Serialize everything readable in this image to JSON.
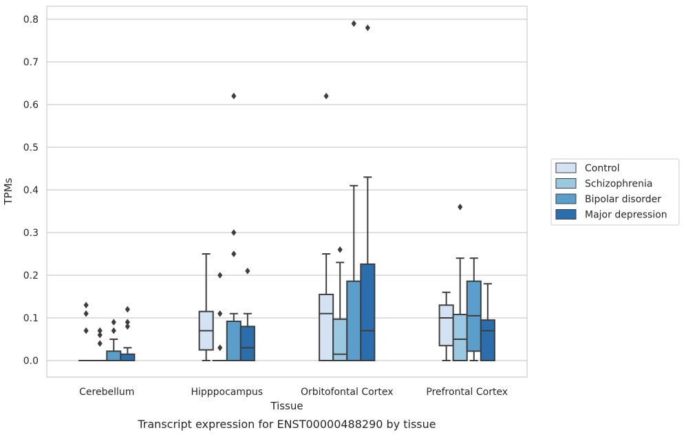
{
  "chart_data": {
    "type": "box",
    "title": "",
    "caption": "Transcript expression for ENST00000488290 by tissue",
    "xlabel": "Tissue",
    "ylabel": "TPMs",
    "ylim": [
      -0.04,
      0.83
    ],
    "yticks": [
      "0.0",
      "0.1",
      "0.2",
      "0.3",
      "0.4",
      "0.5",
      "0.6",
      "0.7",
      "0.8"
    ],
    "grid": true,
    "legend_position": "right",
    "categories": [
      "Cerebellum",
      "Hipppocampus",
      "Orbitofontal Cortex",
      "Prefrontal Cortex"
    ],
    "series": [
      {
        "name": "Control",
        "color": "#d3e3f3",
        "boxes": [
          {
            "whisker_low": 0,
            "q1": 0,
            "median": 0,
            "q3": 0,
            "whisker_high": 0,
            "outliers": [
              0.07,
              0.11,
              0.13
            ]
          },
          {
            "whisker_low": 0,
            "q1": 0.025,
            "median": 0.07,
            "q3": 0.115,
            "whisker_high": 0.25,
            "outliers": []
          },
          {
            "whisker_low": 0,
            "q1": 0,
            "median": 0.11,
            "q3": 0.155,
            "whisker_high": 0.25,
            "outliers": [
              0.62
            ]
          },
          {
            "whisker_low": 0,
            "q1": 0.035,
            "median": 0.1,
            "q3": 0.13,
            "whisker_high": 0.16,
            "outliers": []
          }
        ]
      },
      {
        "name": "Schizophrenia",
        "color": "#9ac8e0",
        "boxes": [
          {
            "whisker_low": 0,
            "q1": 0,
            "median": 0,
            "q3": 0,
            "whisker_high": 0,
            "outliers": [
              0.04,
              0.06,
              0.07
            ]
          },
          {
            "whisker_low": 0,
            "q1": 0,
            "median": 0,
            "q3": 0,
            "whisker_high": 0,
            "outliers": [
              0.03,
              0.11,
              0.2
            ]
          },
          {
            "whisker_low": 0,
            "q1": 0,
            "median": 0.015,
            "q3": 0.097,
            "whisker_high": 0.23,
            "outliers": [
              0.26
            ]
          },
          {
            "whisker_low": 0,
            "q1": 0,
            "median": 0.05,
            "q3": 0.108,
            "whisker_high": 0.24,
            "outliers": [
              0.36
            ]
          }
        ]
      },
      {
        "name": "Bipolar disorder",
        "color": "#5a9fcb",
        "boxes": [
          {
            "whisker_low": 0,
            "q1": 0,
            "median": 0,
            "q3": 0.022,
            "whisker_high": 0.05,
            "outliers": [
              0.07,
              0.09
            ]
          },
          {
            "whisker_low": 0,
            "q1": 0,
            "median": 0,
            "q3": 0.092,
            "whisker_high": 0.11,
            "outliers": [
              0.25,
              0.3,
              0.62
            ]
          },
          {
            "whisker_low": 0,
            "q1": 0,
            "median": 0,
            "q3": 0.186,
            "whisker_high": 0.41,
            "outliers": [
              0.79
            ]
          },
          {
            "whisker_low": 0,
            "q1": 0.022,
            "median": 0.105,
            "q3": 0.186,
            "whisker_high": 0.24,
            "outliers": []
          }
        ]
      },
      {
        "name": "Major depression",
        "color": "#2a6ead",
        "boxes": [
          {
            "whisker_low": 0,
            "q1": 0,
            "median": 0,
            "q3": 0.015,
            "whisker_high": 0.03,
            "outliers": [
              0.08,
              0.09,
              0.12
            ]
          },
          {
            "whisker_low": 0,
            "q1": 0,
            "median": 0.03,
            "q3": 0.08,
            "whisker_high": 0.11,
            "outliers": [
              0.21
            ]
          },
          {
            "whisker_low": 0,
            "q1": 0,
            "median": 0.07,
            "q3": 0.226,
            "whisker_high": 0.43,
            "outliers": [
              0.78
            ]
          },
          {
            "whisker_low": 0,
            "q1": 0,
            "median": 0.07,
            "q3": 0.095,
            "whisker_high": 0.18,
            "outliers": []
          }
        ]
      }
    ]
  }
}
